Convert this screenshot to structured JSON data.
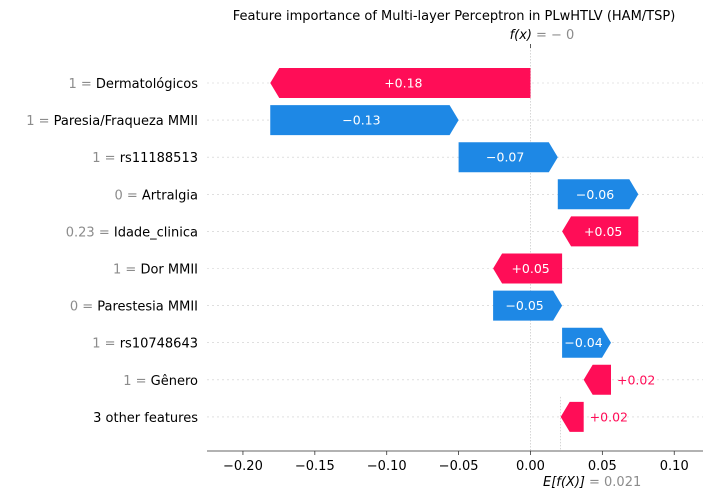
{
  "chart_data": {
    "type": "waterfall",
    "title": "Feature importance of Multi-layer Perceptron in PLwHTLV (HAM/TSP)",
    "fx_label": "f(x)",
    "fx_value": "= − 0",
    "efx_label": "E[f(X)]",
    "efx_value": "= 0.021",
    "base_value": 0.021,
    "final_value": 0.0,
    "xlim": [
      -0.225,
      0.12
    ],
    "xticks": [
      -0.2,
      -0.15,
      -0.1,
      -0.05,
      0.0,
      0.05,
      0.1
    ],
    "xtick_labels": [
      "−0.20",
      "−0.15",
      "−0.10",
      "−0.05",
      "0.00",
      "0.05",
      "0.10"
    ],
    "positive_color": "#ff0d57",
    "negative_color": "#1e88e5",
    "features": [
      {
        "value": "1",
        "name": "Dermatológicos",
        "start": 0.0,
        "end": -0.181,
        "contribution_label": "+0.18",
        "sign": "+"
      },
      {
        "value": "1",
        "name": "Paresia/Fraqueza MMII",
        "start": -0.181,
        "end": -0.05,
        "contribution_label": "−0.13",
        "sign": "-"
      },
      {
        "value": "1",
        "name": "rs11188513",
        "start": -0.05,
        "end": 0.019,
        "contribution_label": "−0.07",
        "sign": "-"
      },
      {
        "value": "0",
        "name": "Artralgia",
        "start": 0.019,
        "end": 0.075,
        "contribution_label": "−0.06",
        "sign": "-"
      },
      {
        "value": "0.23",
        "name": "Idade_clinica",
        "start": 0.075,
        "end": 0.022,
        "contribution_label": "+0.05",
        "sign": "+"
      },
      {
        "value": "1",
        "name": "Dor MMII",
        "start": 0.022,
        "end": -0.026,
        "contribution_label": "+0.05",
        "sign": "+"
      },
      {
        "value": "0",
        "name": "Parestesia MMII",
        "start": -0.026,
        "end": 0.022,
        "contribution_label": "−0.05",
        "sign": "-"
      },
      {
        "value": "1",
        "name": "rs10748643",
        "start": 0.022,
        "end": 0.056,
        "contribution_label": "−0.04",
        "sign": "-"
      },
      {
        "value": "1",
        "name": "Gênero",
        "start": 0.056,
        "end": 0.037,
        "contribution_label": "+0.02",
        "sign": "+"
      },
      {
        "value": "",
        "name": "3 other features",
        "start": 0.037,
        "end": 0.021,
        "contribution_label": "+0.02",
        "sign": "+"
      }
    ]
  }
}
